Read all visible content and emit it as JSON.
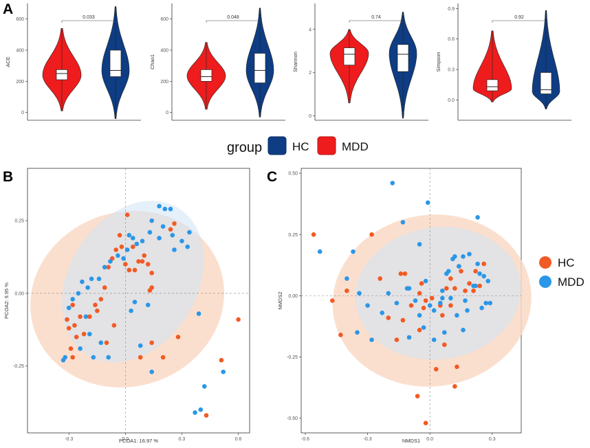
{
  "figure": {
    "panel_labels": [
      "A",
      "B",
      "C"
    ]
  },
  "colors": {
    "hc_violin": "#0e3d84",
    "mdd_violin": "#ee1c1c",
    "hc_point": "#f25a24",
    "mdd_point": "#2a97e8",
    "ellipse_orange": "#fad9c6",
    "ellipse_blue": "#cfe3f5"
  },
  "legend_a": {
    "title": "group",
    "items": [
      "HC",
      "MDD"
    ]
  },
  "legend_bc": {
    "items": [
      "HC",
      "MDD"
    ]
  },
  "chart_data": [
    {
      "type": "violin",
      "panel": "A",
      "ylabel": "ACE",
      "ylim": [
        -50,
        700
      ],
      "yticks": [
        "0",
        "200",
        "400",
        "600"
      ],
      "p_value": "0.033",
      "groups": [
        {
          "name": "MDD",
          "min": 10,
          "q1": 210,
          "median": 250,
          "q3": 275,
          "max": 540,
          "mode": 240
        },
        {
          "name": "HC",
          "min": -40,
          "q1": 230,
          "median": 270,
          "q3": 400,
          "max": 680,
          "mode": 270
        }
      ]
    },
    {
      "type": "violin",
      "panel": "A",
      "ylabel": "Chao1",
      "ylim": [
        -50,
        700
      ],
      "yticks": [
        "0",
        "200",
        "400",
        "600"
      ],
      "p_value": "0.048",
      "groups": [
        {
          "name": "MDD",
          "min": 20,
          "q1": 200,
          "median": 230,
          "q3": 275,
          "max": 450,
          "mode": 235
        },
        {
          "name": "HC",
          "min": -30,
          "q1": 190,
          "median": 270,
          "q3": 380,
          "max": 670,
          "mode": 270
        }
      ]
    },
    {
      "type": "violin",
      "panel": "A",
      "ylabel": "Shannon",
      "ylim": [
        -0.2,
        5.2
      ],
      "yticks": [
        "0",
        "2",
        "4"
      ],
      "p_value": "0.74",
      "groups": [
        {
          "name": "MDD",
          "min": 0.6,
          "q1": 2.35,
          "median": 2.85,
          "q3": 3.15,
          "max": 4.0,
          "mode": 2.9
        },
        {
          "name": "HC",
          "min": -0.1,
          "q1": 2.05,
          "median": 2.85,
          "q3": 3.3,
          "max": 4.8,
          "mode": 2.9
        }
      ]
    },
    {
      "type": "violin",
      "panel": "A",
      "ylabel": "Simpson",
      "ylim": [
        -0.2,
        0.95
      ],
      "yticks": [
        "0.0",
        "0.3",
        "0.6",
        "0.9"
      ],
      "p_value": "0.92",
      "groups": [
        {
          "name": "MDD",
          "min": -0.02,
          "q1": 0.09,
          "median": 0.13,
          "q3": 0.2,
          "max": 0.68,
          "mode": 0.11
        },
        {
          "name": "HC",
          "min": -0.09,
          "q1": 0.06,
          "median": 0.1,
          "q3": 0.27,
          "max": 0.88,
          "mode": 0.08
        }
      ]
    },
    {
      "type": "scatter",
      "panel": "B",
      "xlabel": "PCOA1:  16.97 %",
      "ylabel": "PCOA2:  9.95 %",
      "xlim": [
        -0.52,
        0.66
      ],
      "ylim": [
        -0.48,
        0.43
      ],
      "xticks": [
        "-0.3",
        "0.0",
        "0.3",
        "0.6"
      ],
      "yticks": [
        "-0.25",
        "0.00",
        "0.25"
      ],
      "ellipses": [
        {
          "group": "HC",
          "cx": 0.01,
          "cy": -0.02,
          "rx": 0.52,
          "ry": 0.3,
          "angle": -18
        },
        {
          "group": "MDD",
          "cx": 0.04,
          "cy": 0.04,
          "rx": 0.46,
          "ry": 0.22,
          "angle": -58
        }
      ],
      "series": [
        {
          "name": "HC",
          "x": [
            -0.02,
            0.01,
            0.04,
            -0.03,
            0.1,
            0.12,
            0.07,
            0.05,
            0.09,
            0.14,
            0.13,
            0.14,
            0.08,
            0.02,
            0.0,
            -0.05,
            -0.07,
            -0.09,
            -0.11,
            -0.13,
            -0.16,
            -0.19,
            -0.24,
            -0.28,
            -0.31,
            -0.3,
            -0.27,
            -0.26,
            -0.29,
            -0.28,
            -0.22,
            -0.15,
            -0.1,
            -0.06,
            0.26,
            0.24,
            0.2,
            0.28,
            0.43,
            0.51,
            0.6,
            0.14
          ],
          "y": [
            0.16,
            0.27,
            0.16,
            0.2,
            0.13,
            0.1,
            0.11,
            0.08,
            0.11,
            0.07,
            0.01,
            -0.17,
            -0.22,
            0.08,
            0.1,
            0.15,
            0.12,
            0.09,
            0.02,
            -0.02,
            -0.04,
            -0.08,
            -0.08,
            -0.04,
            -0.09,
            -0.12,
            -0.11,
            -0.15,
            -0.19,
            -0.22,
            -0.14,
            -0.06,
            -0.17,
            -0.11,
            0.24,
            0.22,
            -0.22,
            -0.15,
            -0.42,
            -0.23,
            -0.09,
            0.02
          ]
        },
        {
          "name": "MDD",
          "x": [
            0.18,
            0.21,
            0.26,
            0.33,
            0.34,
            0.3,
            0.25,
            0.24,
            0.2,
            0.18,
            0.14,
            0.13,
            0.09,
            0.06,
            0.04,
            0.01,
            -0.01,
            0.02,
            -0.04,
            -0.08,
            -0.11,
            -0.14,
            -0.18,
            -0.2,
            -0.23,
            -0.25,
            -0.28,
            -0.3,
            -0.21,
            -0.19,
            -0.24,
            -0.17,
            -0.13,
            -0.09,
            0.03,
            0.05,
            0.08,
            0.12,
            0.39,
            0.52,
            0.42,
            0.4,
            0.37,
            0.14,
            -0.33,
            -0.32
          ],
          "y": [
            0.3,
            0.29,
            0.15,
            0.16,
            0.21,
            0.18,
            0.2,
            0.29,
            0.23,
            0.19,
            0.25,
            0.21,
            0.18,
            0.17,
            0.19,
            0.15,
            0.12,
            0.2,
            0.13,
            0.11,
            0.09,
            0.05,
            0.05,
            0.02,
            0.04,
            0.0,
            -0.02,
            -0.05,
            -0.08,
            -0.14,
            -0.19,
            -0.22,
            -0.17,
            -0.22,
            -0.06,
            -0.03,
            -0.18,
            -0.04,
            -0.07,
            -0.27,
            -0.32,
            -0.4,
            -0.41,
            -0.27,
            -0.23,
            -0.22
          ]
        }
      ]
    },
    {
      "type": "scatter",
      "panel": "C",
      "xlabel": "NMDS1",
      "ylabel": "NMDS2",
      "xlim": [
        -0.62,
        0.44
      ],
      "ylim": [
        -0.56,
        0.52
      ],
      "xticks": [
        "-0.6",
        "-0.3",
        "0.0",
        "0.3"
      ],
      "yticks": [
        "-0.50",
        "-0.25",
        "0.00",
        "0.25",
        "0.50"
      ],
      "ellipses": [
        {
          "group": "HC",
          "cx": 0.01,
          "cy": -0.02,
          "rx": 0.48,
          "ry": 0.35,
          "angle": -8
        },
        {
          "group": "MDD",
          "cx": 0.04,
          "cy": 0.01,
          "rx": 0.4,
          "ry": 0.27,
          "angle": -8
        }
      ],
      "series": [
        {
          "name": "HC",
          "x": [
            -0.56,
            -0.47,
            -0.43,
            -0.4,
            -0.28,
            -0.14,
            -0.12,
            -0.05,
            0.01,
            0.05,
            0.08,
            0.1,
            0.14,
            0.17,
            0.19,
            0.21,
            0.24,
            0.26,
            0.22,
            0.15,
            0.12,
            0.1,
            0.06,
            -0.02,
            -0.04,
            -0.09,
            -0.13,
            -0.16,
            -0.2,
            -0.24,
            -0.05,
            0.03,
            0.07,
            0.13,
            -0.06,
            -0.02,
            0.12,
            -0.03
          ],
          "y": [
            0.25,
            -0.02,
            -0.16,
            0.02,
            0.25,
            0.09,
            0.09,
            0.01,
            -0.01,
            -0.04,
            0.03,
            0.07,
            0.12,
            0.02,
            0.05,
            0.02,
            0.04,
            0.13,
            0.1,
            0.1,
            0.03,
            -0.04,
            -0.08,
            -0.02,
            0.05,
            -0.04,
            -0.1,
            -0.18,
            -0.09,
            0.07,
            -0.14,
            -0.3,
            -0.2,
            -0.29,
            -0.41,
            -0.52,
            -0.37,
            -0.05
          ]
        },
        {
          "name": "MDD",
          "x": [
            -0.18,
            -0.53,
            -0.4,
            -0.37,
            -0.34,
            -0.3,
            -0.23,
            -0.2,
            -0.16,
            -0.13,
            -0.11,
            -0.05,
            -0.02,
            0.0,
            0.02,
            0.05,
            0.06,
            0.08,
            0.09,
            0.11,
            0.12,
            0.14,
            0.16,
            0.19,
            0.21,
            0.23,
            0.24,
            0.26,
            0.28,
            0.29,
            0.27,
            0.25,
            0.22,
            0.18,
            0.13,
            0.1,
            0.07,
            0.02,
            -0.03,
            -0.07,
            -0.1,
            -0.28,
            -0.35,
            -0.01,
            0.17,
            0.23,
            0.16,
            -0.05,
            -0.1,
            0.06
          ],
          "y": [
            0.46,
            0.18,
            0.07,
            0.18,
            0.01,
            -0.04,
            -0.07,
            0.01,
            -0.03,
            0.3,
            0.03,
            0.21,
            0.06,
            -0.04,
            -0.06,
            -0.03,
            -0.01,
            0.09,
            0.1,
            0.15,
            0.16,
            0.12,
            0.16,
            0.17,
            0.04,
            0.13,
            0.09,
            0.08,
            0.06,
            -0.03,
            -0.03,
            -0.05,
            0.04,
            -0.06,
            -0.08,
            -0.01,
            -0.15,
            -0.18,
            -0.13,
            -0.02,
            -0.17,
            -0.18,
            -0.15,
            0.38,
            -0.02,
            0.32,
            -0.14,
            -0.08,
            0.03,
            0.02
          ]
        }
      ]
    }
  ]
}
